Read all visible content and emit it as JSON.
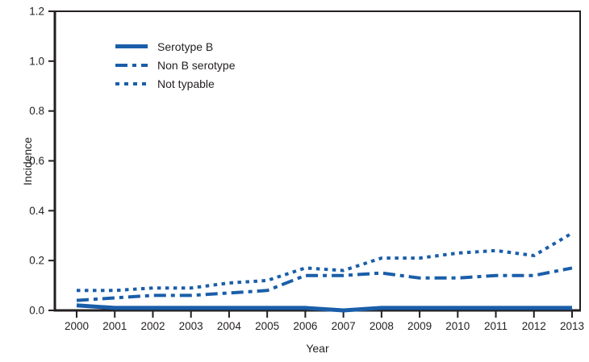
{
  "figure": {
    "y_axis_label": "Incidence",
    "x_axis_label": "Year"
  },
  "chart_data": {
    "type": "line",
    "title": "",
    "xlabel": "Year",
    "ylabel": "Incidence",
    "ylim": [
      0,
      1.2
    ],
    "yticks": [
      0.0,
      0.2,
      0.4,
      0.6,
      0.8,
      1.0,
      1.2
    ],
    "grid": "off",
    "legend_position": "upper-left-inside",
    "line_color": "#1a5ea9",
    "axis_color": "#231f20",
    "x": [
      2000,
      2001,
      2002,
      2003,
      2004,
      2005,
      2006,
      2007,
      2008,
      2009,
      2010,
      2011,
      2012,
      2013
    ],
    "series": [
      {
        "name": "Serotype B",
        "line_style": "solid",
        "values": [
          0.02,
          0.01,
          0.01,
          0.01,
          0.01,
          0.01,
          0.01,
          0.0,
          0.01,
          0.01,
          0.01,
          0.01,
          0.01,
          0.01
        ]
      },
      {
        "name": "Non B serotype",
        "line_style": "dash-dot",
        "values": [
          0.04,
          0.05,
          0.06,
          0.06,
          0.07,
          0.08,
          0.14,
          0.14,
          0.15,
          0.13,
          0.13,
          0.14,
          0.14,
          0.17
        ]
      },
      {
        "name": "Not typable",
        "line_style": "dotted",
        "values": [
          0.08,
          0.08,
          0.09,
          0.09,
          0.11,
          0.12,
          0.17,
          0.16,
          0.21,
          0.21,
          0.23,
          0.24,
          0.22,
          0.31
        ]
      }
    ]
  }
}
